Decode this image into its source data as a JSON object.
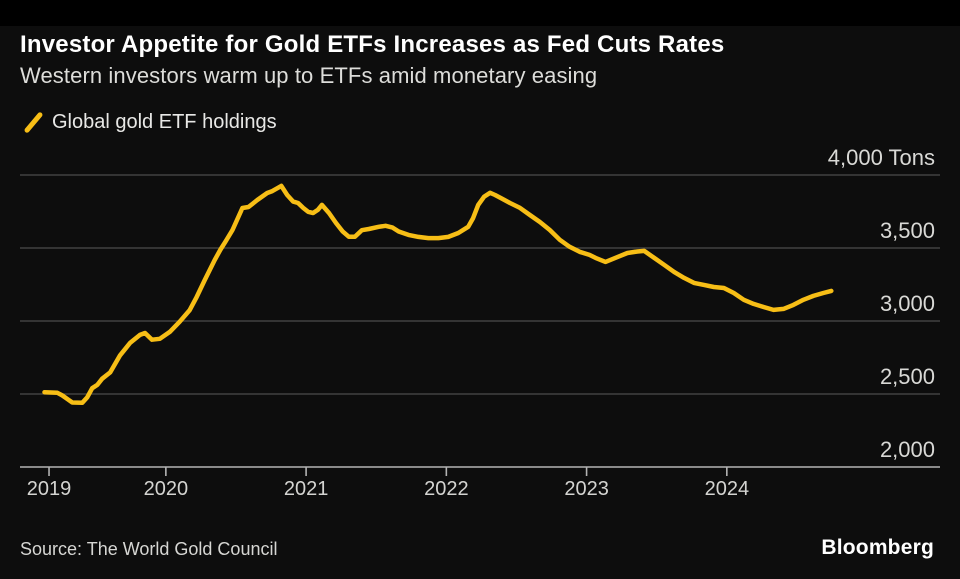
{
  "header": {
    "title": "Investor Appetite for Gold ETFs Increases as Fed Cuts Rates",
    "subtitle": "Western investors warm up to ETFs amid monetary easing"
  },
  "legend": {
    "label": "Global gold ETF holdings"
  },
  "footer": {
    "source": "Source: The World Gold Council",
    "brand": "Bloomberg"
  },
  "colors": {
    "accent": "#f7be16",
    "background": "#0d0d0d",
    "gridline": "#4d4d4d",
    "axis": "#b3b3b3",
    "title_text": "#ffffff",
    "label_text": "#d9d9d6"
  },
  "chart_data": {
    "type": "line",
    "title": "Investor Appetite for Gold ETFs Increases as Fed Cuts Rates",
    "subtitle": "Western investors warm up to ETFs amid monetary easing",
    "xlabel": "",
    "ylabel": "Tons",
    "unit": "Tons",
    "grid": "horizontal",
    "legend_position": "top-left",
    "x_range": [
      2018.96,
      2025.52
    ],
    "y_range": [
      2000,
      4000
    ],
    "y_ticks": [
      {
        "value": 2000,
        "label": "2,000"
      },
      {
        "value": 2500,
        "label": "2,500"
      },
      {
        "value": 3000,
        "label": "3,000"
      },
      {
        "value": 3500,
        "label": "3,500"
      },
      {
        "value": 4000,
        "label": "4,000 Tons"
      }
    ],
    "x_ticks": [
      {
        "pos": 2019.167,
        "label": "2019"
      },
      {
        "pos": 2020,
        "label": "2020"
      },
      {
        "pos": 2021,
        "label": "2021"
      },
      {
        "pos": 2022,
        "label": "2022"
      },
      {
        "pos": 2023,
        "label": "2023"
      },
      {
        "pos": 2024,
        "label": "2024"
      }
    ],
    "series": [
      {
        "name": "Global gold ETF holdings",
        "color": "#f7be16",
        "x_unit": "decimal_year",
        "y_unit": "tons",
        "points": [
          [
            2019.135,
            2512
          ],
          [
            2019.227,
            2508
          ],
          [
            2019.262,
            2490
          ],
          [
            2019.298,
            2465
          ],
          [
            2019.333,
            2442
          ],
          [
            2019.404,
            2440
          ],
          [
            2019.44,
            2478
          ],
          [
            2019.475,
            2540
          ],
          [
            2019.511,
            2562
          ],
          [
            2019.546,
            2605
          ],
          [
            2019.603,
            2648
          ],
          [
            2019.674,
            2765
          ],
          [
            2019.745,
            2850
          ],
          [
            2019.816,
            2905
          ],
          [
            2019.851,
            2918
          ],
          [
            2019.901,
            2872
          ],
          [
            2019.957,
            2878
          ],
          [
            2020.028,
            2925
          ],
          [
            2020.099,
            2995
          ],
          [
            2020.17,
            3075
          ],
          [
            2020.22,
            3165
          ],
          [
            2020.277,
            3280
          ],
          [
            2020.348,
            3418
          ],
          [
            2020.39,
            3490
          ],
          [
            2020.426,
            3545
          ],
          [
            2020.475,
            3623
          ],
          [
            2020.546,
            3774
          ],
          [
            2020.589,
            3781
          ],
          [
            2020.652,
            3829
          ],
          [
            2020.723,
            3877
          ],
          [
            2020.759,
            3890
          ],
          [
            2020.823,
            3925
          ],
          [
            2020.865,
            3863
          ],
          [
            2020.908,
            3818
          ],
          [
            2020.943,
            3808
          ],
          [
            2020.979,
            3775
          ],
          [
            2021.014,
            3748
          ],
          [
            2021.05,
            3740
          ],
          [
            2021.085,
            3762
          ],
          [
            2021.113,
            3795
          ],
          [
            2021.163,
            3740
          ],
          [
            2021.213,
            3671
          ],
          [
            2021.262,
            3612
          ],
          [
            2021.305,
            3577
          ],
          [
            2021.348,
            3577
          ],
          [
            2021.397,
            3622
          ],
          [
            2021.447,
            3630
          ],
          [
            2021.518,
            3645
          ],
          [
            2021.567,
            3652
          ],
          [
            2021.617,
            3640
          ],
          [
            2021.66,
            3613
          ],
          [
            2021.73,
            3590
          ],
          [
            2021.801,
            3576
          ],
          [
            2021.872,
            3568
          ],
          [
            2021.943,
            3568
          ],
          [
            2022.014,
            3576
          ],
          [
            2022.085,
            3603
          ],
          [
            2022.156,
            3645
          ],
          [
            2022.191,
            3705
          ],
          [
            2022.227,
            3795
          ],
          [
            2022.27,
            3852
          ],
          [
            2022.312,
            3878
          ],
          [
            2022.348,
            3863
          ],
          [
            2022.39,
            3842
          ],
          [
            2022.454,
            3808
          ],
          [
            2022.525,
            3775
          ],
          [
            2022.596,
            3726
          ],
          [
            2022.667,
            3678
          ],
          [
            2022.738,
            3623
          ],
          [
            2022.809,
            3556
          ],
          [
            2022.879,
            3508
          ],
          [
            2022.95,
            3474
          ],
          [
            2023.021,
            3453
          ],
          [
            2023.064,
            3432
          ],
          [
            2023.135,
            3405
          ],
          [
            2023.22,
            3438
          ],
          [
            2023.291,
            3466
          ],
          [
            2023.362,
            3476
          ],
          [
            2023.411,
            3480
          ],
          [
            2023.482,
            3432
          ],
          [
            2023.553,
            3385
          ],
          [
            2023.624,
            3336
          ],
          [
            2023.695,
            3295
          ],
          [
            2023.766,
            3261
          ],
          [
            2023.837,
            3247
          ],
          [
            2023.908,
            3233
          ],
          [
            2023.979,
            3226
          ],
          [
            2024.05,
            3192
          ],
          [
            2024.121,
            3145
          ],
          [
            2024.191,
            3117
          ],
          [
            2024.262,
            3096
          ],
          [
            2024.333,
            3076
          ],
          [
            2024.404,
            3083
          ],
          [
            2024.475,
            3110
          ],
          [
            2024.546,
            3145
          ],
          [
            2024.617,
            3172
          ],
          [
            2024.688,
            3192
          ],
          [
            2024.745,
            3206
          ]
        ]
      }
    ]
  }
}
